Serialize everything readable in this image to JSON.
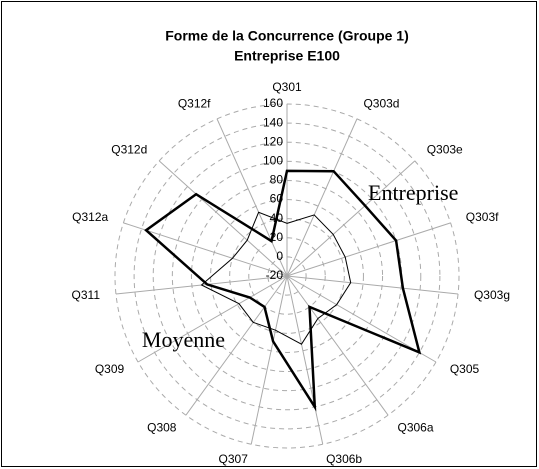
{
  "chart_data": {
    "type": "radar",
    "title": "Forme de la Concurrence (Groupe 1)",
    "subtitle": "Entreprise E100",
    "categories": [
      "Q301",
      "Q303d",
      "Q303e",
      "Q303f",
      "Q303g",
      "Q305",
      "Q306a",
      "Q306b",
      "Q307",
      "Q308",
      "Q309",
      "Q311",
      "Q312a",
      "Q312d",
      "Q312f"
    ],
    "series": [
      {
        "name": "Entreprise",
        "color": "#000000",
        "values": [
          90,
          100,
          90,
          100,
          102,
          140,
          20,
          120,
          50,
          20,
          25,
          64,
          135,
          108,
          20
        ]
      },
      {
        "name": "Moyenne",
        "color": "#000000",
        "values": [
          35,
          50,
          45,
          44,
          47,
          40,
          35,
          53,
          38,
          40,
          38,
          70,
          40,
          36,
          53
        ]
      }
    ],
    "ylim": [
      -20,
      160
    ],
    "yticks": [
      -20,
      0,
      20,
      40,
      60,
      80,
      100,
      120,
      140,
      160
    ],
    "grid": true
  }
}
